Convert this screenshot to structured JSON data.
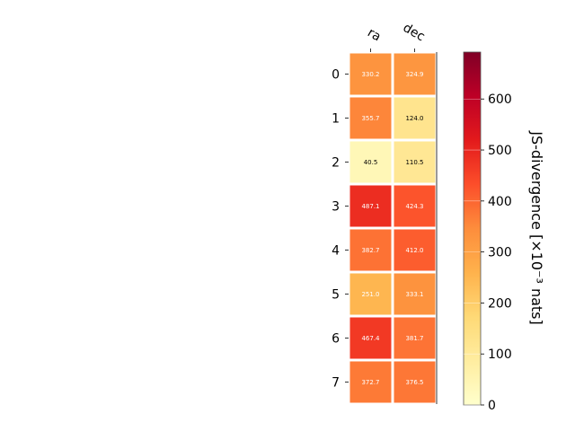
{
  "chart_data": {
    "type": "heatmap",
    "columns": [
      "ra",
      "dec"
    ],
    "rows": [
      "0",
      "1",
      "2",
      "3",
      "4",
      "5",
      "6",
      "7"
    ],
    "values": [
      [
        330.2,
        324.9
      ],
      [
        355.7,
        124.0
      ],
      [
        40.5,
        110.5
      ],
      [
        487.1,
        424.3
      ],
      [
        382.7,
        412.0
      ],
      [
        251.0,
        333.1
      ],
      [
        467.4,
        381.7
      ],
      [
        372.7,
        376.5
      ]
    ],
    "colormap": "YlOrRd",
    "vmin": 0,
    "vmax": 692,
    "colorbar": {
      "label": "JS-divergence [×10⁻³ nats]",
      "ticks": [
        0,
        100,
        200,
        300,
        400,
        500,
        600
      ]
    }
  }
}
